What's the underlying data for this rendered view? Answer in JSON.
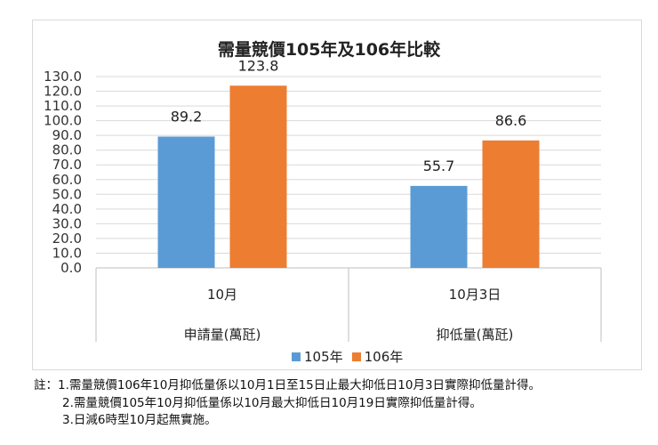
{
  "chart_data": {
    "type": "bar",
    "title": "需量競價105年及106年比較",
    "categories": [
      {
        "top": "10月",
        "bottom": "申請量(萬瓩)"
      },
      {
        "top": "10月3日",
        "bottom": "抑低量(萬瓩)"
      }
    ],
    "series": [
      {
        "name": "105年",
        "color": "#5b9bd5",
        "values": [
          89.2,
          55.7
        ],
        "labels": [
          "89.2",
          "55.7"
        ]
      },
      {
        "name": "106年",
        "color": "#ed7d31",
        "values": [
          123.8,
          86.6
        ],
        "labels": [
          "123.8",
          "86.6"
        ]
      }
    ],
    "ylim": [
      0,
      130
    ],
    "yticks": [
      "0.0",
      "10.0",
      "20.0",
      "30.0",
      "40.0",
      "50.0",
      "60.0",
      "70.0",
      "80.0",
      "90.0",
      "100.0",
      "110.0",
      "120.0",
      "130.0"
    ],
    "grid": true,
    "legend_position": "bottom"
  },
  "notes": [
    "註：1.需量競價106年10月抑低量係以10月1日至15日止最大抑低日10月3日實際抑低量計得。",
    "2.需量競價105年10月抑低量係以10月最大抑低日10月19日實際抑低量計得。",
    "3.日減6時型10月起無實施。"
  ]
}
